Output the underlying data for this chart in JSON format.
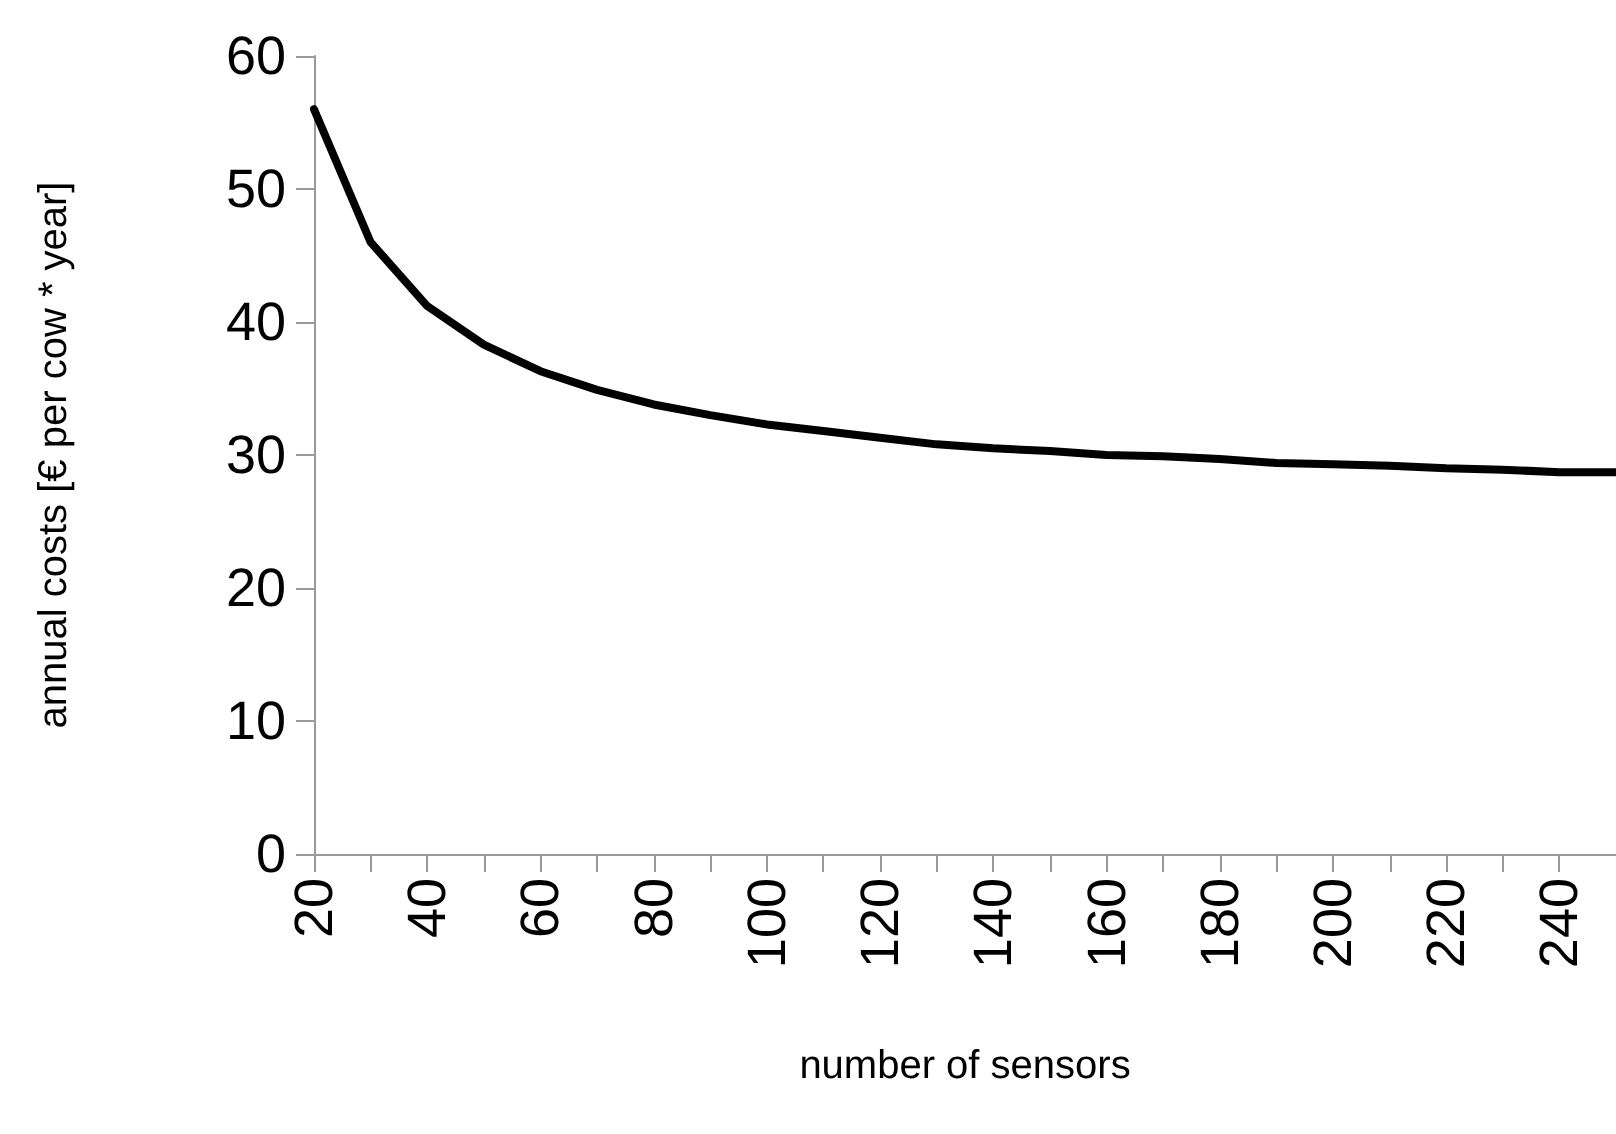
{
  "chart_data": {
    "type": "line",
    "xlabel": "number of sensors",
    "ylabel": "annual costs [€ per cow * year]",
    "categories": [
      "20",
      null,
      "40",
      null,
      "60",
      null,
      "80",
      null,
      "100",
      null,
      "120",
      null,
      "140",
      null,
      "160",
      null,
      "180",
      null,
      "200",
      null,
      "220",
      null,
      "240",
      null
    ],
    "series": [
      {
        "color": "#000000",
        "values": [
          56,
          46,
          41.2,
          38.3,
          36.3,
          34.9,
          33.8,
          33,
          32.3,
          31.8,
          31.3,
          30.8,
          30.5,
          30.3,
          30,
          29.9,
          29.7,
          29.4,
          29.3,
          29.2,
          29,
          28.9,
          28.7,
          28.7
        ]
      }
    ],
    "ylim": [
      0,
      60
    ],
    "yticks": [
      0,
      10,
      20,
      30,
      40,
      50,
      60
    ],
    "grid": false,
    "marker": "none",
    "line_style": "solid"
  }
}
